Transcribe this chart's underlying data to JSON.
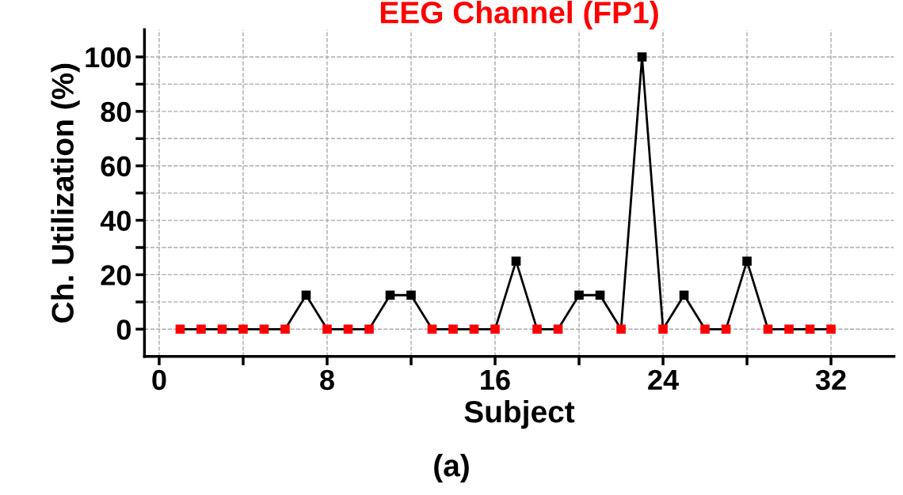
{
  "chart_data": {
    "type": "line",
    "title": "EEG Channel (FP1)",
    "xlabel": "Subject",
    "ylabel": "Ch. Utilization (%)",
    "annotations": [
      "(a)"
    ],
    "x": [
      1,
      2,
      3,
      4,
      5,
      6,
      7,
      8,
      9,
      10,
      11,
      12,
      13,
      14,
      15,
      16,
      17,
      18,
      19,
      20,
      21,
      22,
      23,
      24,
      25,
      26,
      27,
      28,
      29,
      30,
      31,
      32
    ],
    "series": [
      {
        "color": "#000000",
        "values": [
          0,
          0,
          0,
          0,
          0,
          0,
          12.5,
          0,
          0,
          0,
          12.5,
          12.5,
          0,
          0,
          0,
          0,
          25,
          0,
          0,
          12.5,
          12.5,
          0,
          100,
          0,
          12.5,
          0,
          0,
          25,
          0,
          0,
          0,
          0
        ],
        "colors": [
          "#ff0000",
          "#ff0000",
          "#ff0000",
          "#ff0000",
          "#ff0000",
          "#ff0000",
          "#000000",
          "#ff0000",
          "#ff0000",
          "#ff0000",
          "#000000",
          "#000000",
          "#ff0000",
          "#ff0000",
          "#ff0000",
          "#ff0000",
          "#000000",
          "#ff0000",
          "#ff0000",
          "#000000",
          "#000000",
          "#ff0000",
          "#000000",
          "#ff0000",
          "#000000",
          "#ff0000",
          "#ff0000",
          "#000000",
          "#ff0000",
          "#ff0000",
          "#ff0000",
          "#ff0000"
        ]
      }
    ],
    "xlim": [
      -0.7,
      35
    ],
    "xticks": [
      0,
      {
        "value": 4,
        "label": null
      },
      8,
      {
        "value": 12,
        "label": null
      },
      16,
      {
        "value": 20,
        "label": null
      },
      24,
      {
        "value": 28,
        "label": null
      },
      32
    ],
    "ylim": [
      -10,
      110
    ],
    "yticks": [
      0,
      {
        "value": 10,
        "label": null
      },
      20,
      {
        "value": 30,
        "label": null
      },
      40,
      {
        "value": 50,
        "label": null
      },
      60,
      {
        "value": 70,
        "label": null
      },
      80,
      {
        "value": 90,
        "label": null
      },
      100
    ],
    "grid": true,
    "marker": "square",
    "line_style": "solid"
  }
}
